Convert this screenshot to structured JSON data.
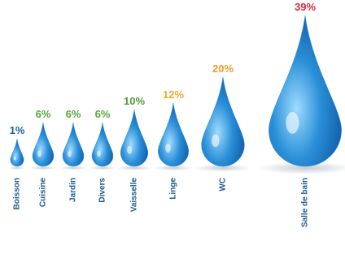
{
  "chart_data": {
    "type": "drop",
    "categories": [
      "Boisson",
      "Cuisine",
      "Jardin",
      "Divers",
      "Vaisselle",
      "Linge",
      "WC",
      "Salle de bain"
    ],
    "values": [
      1,
      6,
      6,
      6,
      10,
      12,
      20,
      39
    ],
    "value_labels": [
      "1%",
      "6%",
      "6%",
      "6%",
      "10%",
      "12%",
      "20%",
      "39%"
    ],
    "label_colors": [
      "#1d5f9e",
      "#5aa63a",
      "#5aa63a",
      "#5aa63a",
      "#4f9e35",
      "#f0a830",
      "#ee9a2a",
      "#e0283a"
    ],
    "color": "#2a8fd8"
  }
}
